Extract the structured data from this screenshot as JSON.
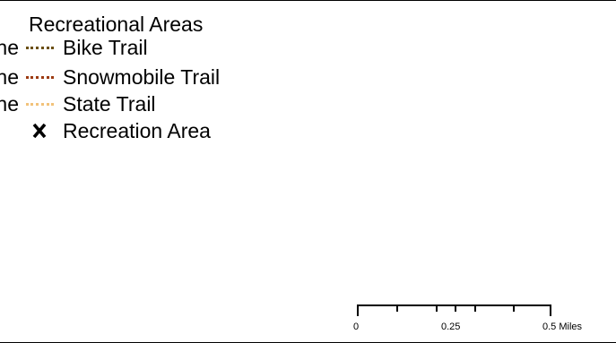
{
  "legend": {
    "title": "Recreational Areas",
    "items": [
      {
        "cut_text": "ne",
        "label": "Bike Trail",
        "symbol": "dotted-line",
        "color": "#6b4f13"
      },
      {
        "cut_text": "ne",
        "label": "Snowmobile Trail",
        "symbol": "dotted-line",
        "color": "#9c3b12"
      },
      {
        "cut_text": "ne",
        "label": "State Trail",
        "symbol": "dotted-line",
        "color": "#f2c27a"
      },
      {
        "cut_text": "",
        "label": "Recreation Area",
        "symbol": "x-mark-icon",
        "color": "#000000"
      }
    ]
  },
  "scale_bar": {
    "labels": [
      "0",
      "0.25",
      "0.5 Miles"
    ],
    "color": "#000000"
  }
}
